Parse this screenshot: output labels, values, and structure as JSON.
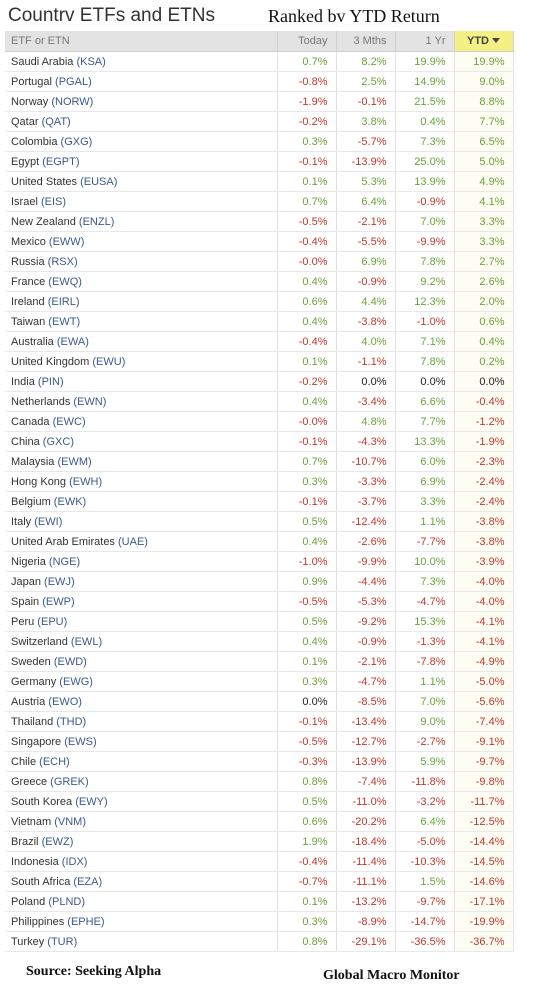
{
  "header": {
    "title": "Countrv ETFs and ETNs",
    "subtitle": "Ranked bv YTD Return"
  },
  "table": {
    "columns": {
      "name": "ETF or ETN",
      "today": "Today",
      "three_month": "3 Mths",
      "one_year": "1 Yr",
      "ytd": "YTD"
    },
    "rows": [
      {
        "country": "Saudi Arabia",
        "ticker": "KSA",
        "today": "0.7%",
        "m3": "8.2%",
        "y1": "19.9%",
        "ytd": "19.9%"
      },
      {
        "country": "Portugal",
        "ticker": "PGAL",
        "today": "-0.8%",
        "m3": "2.5%",
        "y1": "14.9%",
        "ytd": "9.0%"
      },
      {
        "country": "Norway",
        "ticker": "NORW",
        "today": "-1.9%",
        "m3": "-0.1%",
        "y1": "21.5%",
        "ytd": "8.8%"
      },
      {
        "country": "Qatar",
        "ticker": "QAT",
        "today": "-0.2%",
        "m3": "3.8%",
        "y1": "0.4%",
        "ytd": "7.7%"
      },
      {
        "country": "Colombia",
        "ticker": "GXG",
        "today": "0.3%",
        "m3": "-5.7%",
        "y1": "7.3%",
        "ytd": "6.5%"
      },
      {
        "country": "Egypt",
        "ticker": "EGPT",
        "today": "-0.1%",
        "m3": "-13.9%",
        "y1": "25.0%",
        "ytd": "5.0%"
      },
      {
        "country": "United States",
        "ticker": "EUSA",
        "today": "0.1%",
        "m3": "5.3%",
        "y1": "13.9%",
        "ytd": "4.9%"
      },
      {
        "country": "Israel",
        "ticker": "EIS",
        "today": "0.7%",
        "m3": "6.4%",
        "y1": "-0.9%",
        "ytd": "4.1%"
      },
      {
        "country": "New Zealand",
        "ticker": "ENZL",
        "today": "-0.5%",
        "m3": "-2.1%",
        "y1": "7.0%",
        "ytd": "3.3%"
      },
      {
        "country": "Mexico",
        "ticker": "EWW",
        "today": "-0.4%",
        "m3": "-5.5%",
        "y1": "-9.9%",
        "ytd": "3.3%"
      },
      {
        "country": "Russia",
        "ticker": "RSX",
        "today": "-0.0%",
        "m3": "6.9%",
        "y1": "7.8%",
        "ytd": "2.7%"
      },
      {
        "country": "France",
        "ticker": "EWQ",
        "today": "0.4%",
        "m3": "-0.9%",
        "y1": "9.2%",
        "ytd": "2.6%"
      },
      {
        "country": "Ireland",
        "ticker": "EIRL",
        "today": "0.6%",
        "m3": "4.4%",
        "y1": "12.3%",
        "ytd": "2.0%"
      },
      {
        "country": "Taiwan",
        "ticker": "EWT",
        "today": "0.4%",
        "m3": "-3.8%",
        "y1": "-1.0%",
        "ytd": "0.6%"
      },
      {
        "country": "Australia",
        "ticker": "EWA",
        "today": "-0.4%",
        "m3": "4.0%",
        "y1": "7.1%",
        "ytd": "0.4%"
      },
      {
        "country": "United Kingdom",
        "ticker": "EWU",
        "today": "0.1%",
        "m3": "-1.1%",
        "y1": "7.8%",
        "ytd": "0.2%"
      },
      {
        "country": "India",
        "ticker": "PIN",
        "today": "-0.2%",
        "m3": "0.0%",
        "y1": "0.0%",
        "ytd": "0.0%"
      },
      {
        "country": "Netherlands",
        "ticker": "EWN",
        "today": "0.4%",
        "m3": "-3.4%",
        "y1": "6.6%",
        "ytd": "-0.4%"
      },
      {
        "country": "Canada",
        "ticker": "EWC",
        "today": "-0.0%",
        "m3": "4.8%",
        "y1": "7.7%",
        "ytd": "-1.2%"
      },
      {
        "country": "China",
        "ticker": "GXC",
        "today": "-0.1%",
        "m3": "-4.3%",
        "y1": "13.3%",
        "ytd": "-1.9%"
      },
      {
        "country": "Malaysia",
        "ticker": "EWM",
        "today": "0.7%",
        "m3": "-10.7%",
        "y1": "6.0%",
        "ytd": "-2.3%"
      },
      {
        "country": "Hong Kong",
        "ticker": "EWH",
        "today": "0.3%",
        "m3": "-3.3%",
        "y1": "6.9%",
        "ytd": "-2.4%"
      },
      {
        "country": "Belgium",
        "ticker": "EWK",
        "today": "-0.1%",
        "m3": "-3.7%",
        "y1": "3.3%",
        "ytd": "-2.4%"
      },
      {
        "country": "Italy",
        "ticker": "EWI",
        "today": "0.5%",
        "m3": "-12.4%",
        "y1": "1.1%",
        "ytd": "-3.8%"
      },
      {
        "country": "United Arab Emirates",
        "ticker": "UAE",
        "today": "0.4%",
        "m3": "-2.6%",
        "y1": "-7.7%",
        "ytd": "-3.8%"
      },
      {
        "country": "Nigeria",
        "ticker": "NGE",
        "today": "-1.0%",
        "m3": "-9.9%",
        "y1": "10.0%",
        "ytd": "-3.9%"
      },
      {
        "country": "Japan",
        "ticker": "EWJ",
        "today": "0.9%",
        "m3": "-4.4%",
        "y1": "7.3%",
        "ytd": "-4.0%"
      },
      {
        "country": "Spain",
        "ticker": "EWP",
        "today": "-0.5%",
        "m3": "-5.3%",
        "y1": "-4.7%",
        "ytd": "-4.0%"
      },
      {
        "country": "Peru",
        "ticker": "EPU",
        "today": "0.5%",
        "m3": "-9.2%",
        "y1": "15.3%",
        "ytd": "-4.1%"
      },
      {
        "country": "Switzerland",
        "ticker": "EWL",
        "today": "0.4%",
        "m3": "-0.9%",
        "y1": "-1.3%",
        "ytd": "-4.1%"
      },
      {
        "country": "Sweden",
        "ticker": "EWD",
        "today": "0.1%",
        "m3": "-2.1%",
        "y1": "-7.8%",
        "ytd": "-4.9%"
      },
      {
        "country": "Germany",
        "ticker": "EWG",
        "today": "0.3%",
        "m3": "-4.7%",
        "y1": "1.1%",
        "ytd": "-5.0%"
      },
      {
        "country": "Austria",
        "ticker": "EWO",
        "today": "0.0%",
        "m3": "-8.5%",
        "y1": "7.0%",
        "ytd": "-5.6%"
      },
      {
        "country": "Thailand",
        "ticker": "THD",
        "today": "-0.1%",
        "m3": "-13.4%",
        "y1": "9.0%",
        "ytd": "-7.4%"
      },
      {
        "country": "Singapore",
        "ticker": "EWS",
        "today": "-0.5%",
        "m3": "-12.7%",
        "y1": "-2.7%",
        "ytd": "-9.1%"
      },
      {
        "country": "Chile",
        "ticker": "ECH",
        "today": "-0.3%",
        "m3": "-13.9%",
        "y1": "5.9%",
        "ytd": "-9.7%"
      },
      {
        "country": "Greece",
        "ticker": "GREK",
        "today": "0.8%",
        "m3": "-7.4%",
        "y1": "-11.8%",
        "ytd": "-9.8%"
      },
      {
        "country": "South Korea",
        "ticker": "EWY",
        "today": "0.5%",
        "m3": "-11.0%",
        "y1": "-3.2%",
        "ytd": "-11.7%"
      },
      {
        "country": "Vietnam",
        "ticker": "VNM",
        "today": "0.6%",
        "m3": "-20.2%",
        "y1": "6.4%",
        "ytd": "-12.5%"
      },
      {
        "country": "Brazil",
        "ticker": "EWZ",
        "today": "1.9%",
        "m3": "-18.4%",
        "y1": "-5.0%",
        "ytd": "-14.4%"
      },
      {
        "country": "Indonesia",
        "ticker": "IDX",
        "today": "-0.4%",
        "m3": "-11.4%",
        "y1": "-10.3%",
        "ytd": "-14.5%"
      },
      {
        "country": "South Africa",
        "ticker": "EZA",
        "today": "-0.7%",
        "m3": "-11.1%",
        "y1": "1.5%",
        "ytd": "-14.6%"
      },
      {
        "country": "Poland",
        "ticker": "PLND",
        "today": "0.1%",
        "m3": "-13.2%",
        "y1": "-9.7%",
        "ytd": "-17.1%"
      },
      {
        "country": "Philippines",
        "ticker": "EPHE",
        "today": "0.3%",
        "m3": "-8.9%",
        "y1": "-14.7%",
        "ytd": "-19.9%"
      },
      {
        "country": "Turkey",
        "ticker": "TUR",
        "today": "0.8%",
        "m3": "-29.1%",
        "y1": "-36.5%",
        "ytd": "-36.7%"
      }
    ]
  },
  "footer": {
    "source": "Source:  Seeking Alpha",
    "brand": "Global Macro Monitor"
  },
  "colors": {
    "positive": "#6aa33a",
    "negative": "#c0392b",
    "ticker": "#3a5a8c",
    "ytd_header": "#f4f084",
    "header_bg": "#e3e3e3"
  },
  "icons": {
    "sort": "caret-down-icon"
  }
}
